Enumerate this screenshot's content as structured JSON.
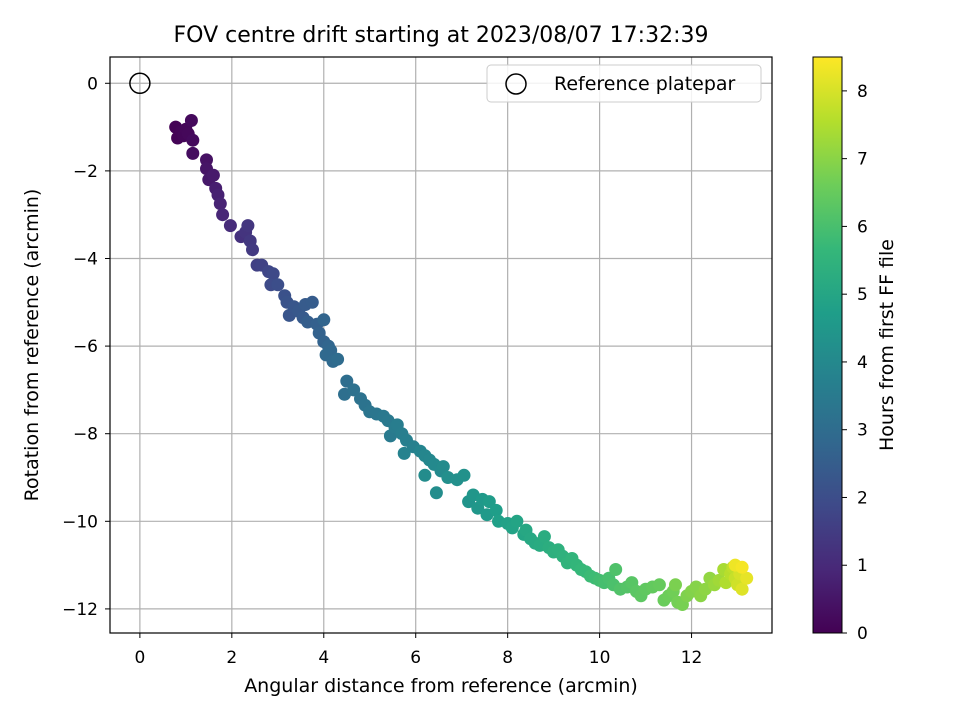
{
  "chart_data": {
    "type": "scatter",
    "title": "FOV centre drift starting at 2023/08/07 17:32:39",
    "xlabel": "Angular distance from reference (arcmin)",
    "ylabel": "Rotation from reference (arcmin)",
    "colorbar_label": "Hours from first FF file",
    "xlim": [
      -0.65,
      13.75
    ],
    "ylim": [
      -12.55,
      0.6
    ],
    "clim": [
      0,
      8.5
    ],
    "grid": true,
    "legend_position": "top-right",
    "x_ticks": [
      0,
      2,
      4,
      6,
      8,
      10,
      12
    ],
    "y_ticks": [
      0,
      -2,
      -4,
      -6,
      -8,
      -10,
      -12
    ],
    "colorbar_ticks": [
      0,
      1,
      2,
      3,
      4,
      5,
      6,
      7,
      8
    ],
    "colormap": "viridis",
    "reference": {
      "label": "Reference platepar",
      "x": 0,
      "y": 0
    },
    "series": [
      {
        "fields": [
          "x",
          "y",
          "hours"
        ],
        "points": [
          [
            0.78,
            -1.0,
            0.02
          ],
          [
            0.82,
            -1.25,
            0.05
          ],
          [
            0.9,
            -1.1,
            0.08
          ],
          [
            0.95,
            -1.2,
            0.11
          ],
          [
            1.0,
            -1.05,
            0.14
          ],
          [
            1.05,
            -1.15,
            0.17
          ],
          [
            1.12,
            -0.85,
            0.2
          ],
          [
            1.15,
            -1.3,
            0.23
          ],
          [
            1.15,
            -1.6,
            0.3
          ],
          [
            1.45,
            -1.75,
            0.4
          ],
          [
            1.45,
            -1.95,
            0.48
          ],
          [
            1.5,
            -2.2,
            0.55
          ],
          [
            1.6,
            -2.1,
            0.6
          ],
          [
            1.65,
            -2.4,
            0.7
          ],
          [
            1.7,
            -2.55,
            0.78
          ],
          [
            1.75,
            -2.75,
            0.85
          ],
          [
            1.8,
            -3.0,
            0.92
          ],
          [
            1.97,
            -3.25,
            1.05
          ],
          [
            2.2,
            -3.5,
            1.2
          ],
          [
            2.3,
            -3.4,
            1.28
          ],
          [
            2.35,
            -3.25,
            1.32
          ],
          [
            2.4,
            -3.6,
            1.38
          ],
          [
            2.45,
            -3.8,
            1.45
          ],
          [
            2.55,
            -4.15,
            1.6
          ],
          [
            2.65,
            -4.15,
            1.68
          ],
          [
            2.8,
            -4.3,
            1.78
          ],
          [
            2.9,
            -4.35,
            1.85
          ],
          [
            2.85,
            -4.6,
            1.92
          ],
          [
            3.0,
            -4.6,
            2.0
          ],
          [
            3.15,
            -4.85,
            2.1
          ],
          [
            3.2,
            -5.0,
            2.17
          ],
          [
            3.25,
            -5.3,
            2.23
          ],
          [
            3.35,
            -5.1,
            2.28
          ],
          [
            3.45,
            -5.2,
            2.33
          ],
          [
            3.55,
            -5.35,
            2.38
          ],
          [
            3.6,
            -5.05,
            2.42
          ],
          [
            3.75,
            -5.0,
            2.47
          ],
          [
            3.65,
            -5.45,
            2.52
          ],
          [
            3.85,
            -5.5,
            2.58
          ],
          [
            3.9,
            -5.7,
            2.63
          ],
          [
            4.0,
            -5.9,
            2.68
          ],
          [
            4.0,
            -5.4,
            2.73
          ],
          [
            4.1,
            -6.0,
            2.78
          ],
          [
            4.15,
            -6.1,
            2.83
          ],
          [
            4.05,
            -6.2,
            2.88
          ],
          [
            4.2,
            -6.35,
            2.92
          ],
          [
            4.3,
            -6.3,
            2.97
          ],
          [
            4.5,
            -6.8,
            3.05
          ],
          [
            4.45,
            -7.1,
            3.1
          ],
          [
            4.65,
            -7.0,
            3.15
          ],
          [
            4.8,
            -7.2,
            3.2
          ],
          [
            4.9,
            -7.35,
            3.25
          ],
          [
            5.0,
            -7.5,
            3.3
          ],
          [
            5.15,
            -7.55,
            3.35
          ],
          [
            5.3,
            -7.6,
            3.4
          ],
          [
            5.4,
            -7.7,
            3.45
          ],
          [
            5.45,
            -8.05,
            3.5
          ],
          [
            5.55,
            -7.85,
            3.55
          ],
          [
            5.6,
            -7.8,
            3.58
          ],
          [
            5.7,
            -8.0,
            3.62
          ],
          [
            5.8,
            -8.15,
            3.68
          ],
          [
            5.95,
            -8.3,
            3.72
          ],
          [
            5.75,
            -8.45,
            3.76
          ],
          [
            6.1,
            -8.4,
            3.85
          ],
          [
            6.2,
            -8.5,
            3.9
          ],
          [
            6.3,
            -8.6,
            3.95
          ],
          [
            6.4,
            -8.7,
            4.0
          ],
          [
            6.55,
            -8.85,
            4.05
          ],
          [
            6.6,
            -8.75,
            4.08
          ],
          [
            6.2,
            -8.95,
            4.12
          ],
          [
            6.45,
            -9.35,
            4.15
          ],
          [
            6.7,
            -9.0,
            4.2
          ],
          [
            6.9,
            -9.05,
            4.25
          ],
          [
            7.05,
            -8.95,
            4.3
          ],
          [
            7.15,
            -9.55,
            4.4
          ],
          [
            7.25,
            -9.4,
            4.45
          ],
          [
            7.35,
            -9.7,
            4.5
          ],
          [
            7.45,
            -9.5,
            4.55
          ],
          [
            7.55,
            -9.85,
            4.6
          ],
          [
            7.6,
            -9.55,
            4.65
          ],
          [
            7.75,
            -9.75,
            4.72
          ],
          [
            7.8,
            -10.0,
            4.78
          ],
          [
            8.0,
            -10.05,
            4.85
          ],
          [
            8.1,
            -10.15,
            4.9
          ],
          [
            8.2,
            -10.0,
            4.95
          ],
          [
            8.35,
            -10.3,
            5.0
          ],
          [
            8.4,
            -10.2,
            5.05
          ],
          [
            8.5,
            -10.4,
            5.1
          ],
          [
            8.6,
            -10.5,
            5.15
          ],
          [
            8.7,
            -10.55,
            5.2
          ],
          [
            8.8,
            -10.35,
            5.25
          ],
          [
            8.9,
            -10.6,
            5.3
          ],
          [
            9.0,
            -10.7,
            5.35
          ],
          [
            9.1,
            -10.65,
            5.4
          ],
          [
            9.2,
            -10.8,
            5.45
          ],
          [
            9.3,
            -10.95,
            5.5
          ],
          [
            9.4,
            -10.85,
            5.55
          ],
          [
            9.5,
            -11.0,
            5.6
          ],
          [
            9.6,
            -11.1,
            5.65
          ],
          [
            9.7,
            -11.15,
            5.7
          ],
          [
            9.8,
            -11.25,
            5.78
          ],
          [
            9.9,
            -11.3,
            5.82
          ],
          [
            10.0,
            -11.35,
            5.9
          ],
          [
            10.1,
            -11.4,
            5.95
          ],
          [
            10.2,
            -11.3,
            6.0
          ],
          [
            10.3,
            -11.45,
            6.05
          ],
          [
            10.35,
            -11.1,
            6.1
          ],
          [
            10.45,
            -11.55,
            6.15
          ],
          [
            10.6,
            -11.5,
            6.2
          ],
          [
            10.7,
            -11.4,
            6.25
          ],
          [
            10.8,
            -11.6,
            6.3
          ],
          [
            10.9,
            -11.7,
            6.35
          ],
          [
            11.0,
            -11.55,
            6.4
          ],
          [
            11.15,
            -11.5,
            6.45
          ],
          [
            11.3,
            -11.45,
            6.5
          ],
          [
            11.4,
            -11.8,
            6.55
          ],
          [
            11.5,
            -11.7,
            6.6
          ],
          [
            11.6,
            -11.6,
            6.65
          ],
          [
            11.7,
            -11.85,
            6.7
          ],
          [
            11.8,
            -11.9,
            6.75
          ],
          [
            11.65,
            -11.45,
            6.8
          ],
          [
            11.9,
            -11.7,
            6.85
          ],
          [
            12.0,
            -11.6,
            6.9
          ],
          [
            12.1,
            -11.5,
            6.95
          ],
          [
            12.2,
            -11.7,
            7.0
          ],
          [
            12.3,
            -11.55,
            7.05
          ],
          [
            12.4,
            -11.3,
            7.1
          ],
          [
            12.5,
            -11.45,
            7.2
          ],
          [
            12.6,
            -11.35,
            7.3
          ],
          [
            12.7,
            -11.1,
            7.4
          ],
          [
            12.75,
            -11.4,
            7.5
          ],
          [
            12.85,
            -11.2,
            7.6
          ],
          [
            12.9,
            -11.05,
            7.7
          ],
          [
            12.95,
            -11.3,
            7.8
          ],
          [
            13.0,
            -11.45,
            7.9
          ],
          [
            13.05,
            -11.2,
            8.0
          ],
          [
            13.1,
            -11.55,
            8.1
          ],
          [
            13.2,
            -11.3,
            8.2
          ],
          [
            12.95,
            -11.0,
            8.3
          ],
          [
            13.1,
            -11.05,
            8.4
          ]
        ]
      }
    ]
  }
}
